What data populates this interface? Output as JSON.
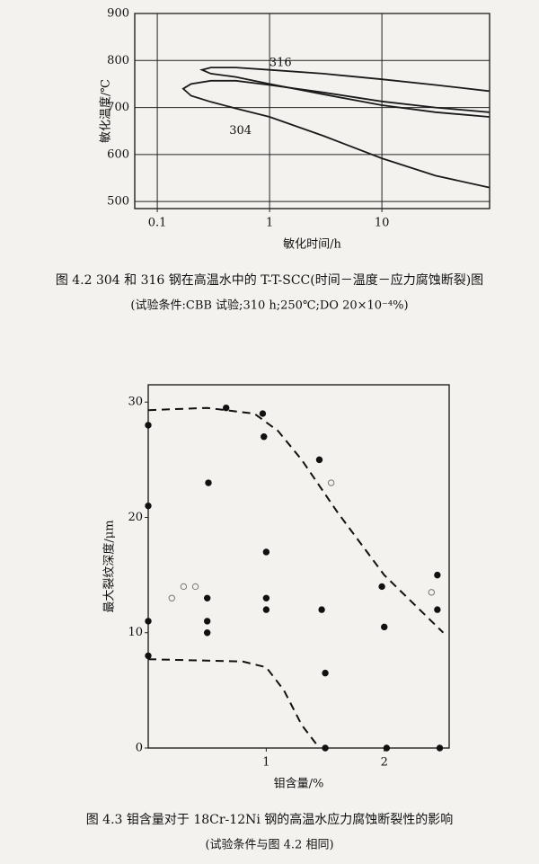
{
  "chart_data": [
    {
      "type": "line",
      "title": "图 4.2   304 和 316 钢在高温水中的 T-T-SCC(时间－温度－应力腐蚀断裂)图",
      "subtitle": "(试验条件:CBB 试验;310 h;250℃;DO 20×10⁻⁴%)",
      "x_label": "敏化时间/h",
      "y_label": "敏化温度/℃",
      "xscale": "log",
      "grid": true,
      "xlim": [
        0.063,
        91
      ],
      "ylim": [
        485,
        900
      ],
      "xticks": [
        0.1,
        1,
        10
      ],
      "yticks": [
        500,
        600,
        700,
        800,
        900
      ],
      "annotations": [
        "316",
        "304"
      ],
      "series": [
        {
          "color": "#1a1a1a",
          "x": [
            90,
            30,
            10,
            3,
            1,
            0.5,
            0.3,
            0.25,
            0.3,
            0.5,
            1,
            3,
            10,
            30,
            90
          ],
          "values": [
            735,
            748,
            760,
            772,
            780,
            785,
            785,
            780,
            772,
            765,
            750,
            728,
            705,
            690,
            680
          ]
        },
        {
          "color": "#1a1a1a",
          "x": [
            90,
            30,
            10,
            3,
            1,
            0.5,
            0.3,
            0.2,
            0.17,
            0.2,
            0.3,
            0.5,
            1,
            3,
            10,
            30,
            90
          ],
          "values": [
            690,
            700,
            713,
            732,
            748,
            757,
            757,
            750,
            740,
            725,
            712,
            698,
            680,
            640,
            592,
            555,
            530
          ]
        }
      ]
    },
    {
      "type": "scatter",
      "title": "图 4.3   钼含量对于 18Cr-12Ni 钢的高温水应力腐蚀断裂性的影响",
      "subtitle": "(试验条件与图 4.2 相同)",
      "x_label": "钼含量/%",
      "y_label": "最大裂纹深度/μm",
      "grid": false,
      "xlim": [
        0,
        2.55
      ],
      "ylim": [
        0,
        31.5
      ],
      "xticks": [
        1,
        2
      ],
      "yticks": [
        0,
        10,
        20,
        30
      ],
      "series": [
        {
          "color": "#111111",
          "marker": "filled",
          "x": [
            0,
            0,
            0,
            0,
            0.66,
            0.51,
            0.5,
            0.5,
            0.5,
            0.97,
            0.98,
            1,
            1,
            1,
            1.47,
            1.45,
            1.5,
            1.5,
            1.98,
            2.0,
            2.02,
            2.45,
            2.45,
            2.47
          ],
          "values": [
            28,
            21,
            11,
            8,
            29.5,
            23,
            13,
            11,
            10,
            29,
            27,
            17,
            13,
            12,
            12,
            25,
            6.5,
            0,
            14,
            10.5,
            0,
            15,
            12,
            0
          ]
        },
        {
          "color": "#777777",
          "marker": "open",
          "x": [
            0.2,
            0.3,
            0.4,
            1.55,
            2.4
          ],
          "values": [
            13,
            14,
            14,
            23,
            13.5
          ]
        },
        {
          "color": "#111111",
          "marker": "dashed",
          "x": [
            0,
            0.5,
            0.9,
            1.1,
            1.3,
            1.6,
            2.0,
            2.5
          ],
          "values": [
            29.3,
            29.5,
            29,
            27.5,
            25,
            20.5,
            15,
            10
          ]
        },
        {
          "color": "#111111",
          "marker": "dashed",
          "x": [
            0,
            0.8,
            1.0,
            1.15,
            1.3,
            1.45
          ],
          "values": [
            7.7,
            7.5,
            7,
            5,
            2,
            0
          ]
        }
      ]
    }
  ]
}
